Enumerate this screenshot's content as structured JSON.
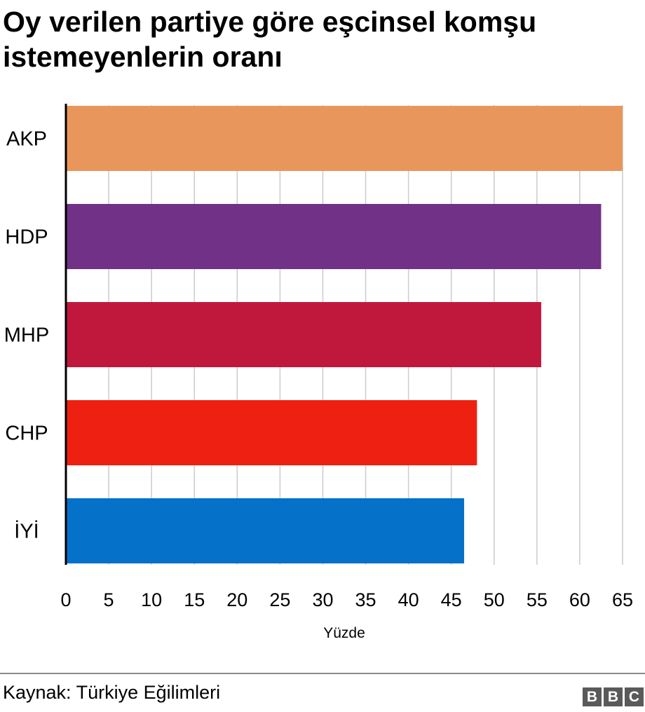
{
  "chart_data": {
    "type": "bar",
    "orientation": "horizontal",
    "title": "Oy verilen partiye göre eşcinsel komşu istemeyenlerin oranı",
    "categories": [
      "AKP",
      "HDP",
      "MHP",
      "CHP",
      "İYİ"
    ],
    "values": [
      65,
      62.5,
      55.5,
      48,
      46.5
    ],
    "colors": [
      "#e9965c",
      "#713186",
      "#c0183d",
      "#ee2011",
      "#0571c9"
    ],
    "xlabel": "Yüzde",
    "ylabel": "",
    "xlim": [
      0,
      65
    ],
    "xticks": [
      0,
      5,
      10,
      15,
      20,
      25,
      30,
      35,
      40,
      45,
      50,
      55,
      60,
      65
    ],
    "grid": "vertical",
    "legend": "none"
  },
  "footer": {
    "source": "Kaynak: Türkiye Eğilimleri",
    "logo_letters": [
      "B",
      "B",
      "C"
    ]
  }
}
